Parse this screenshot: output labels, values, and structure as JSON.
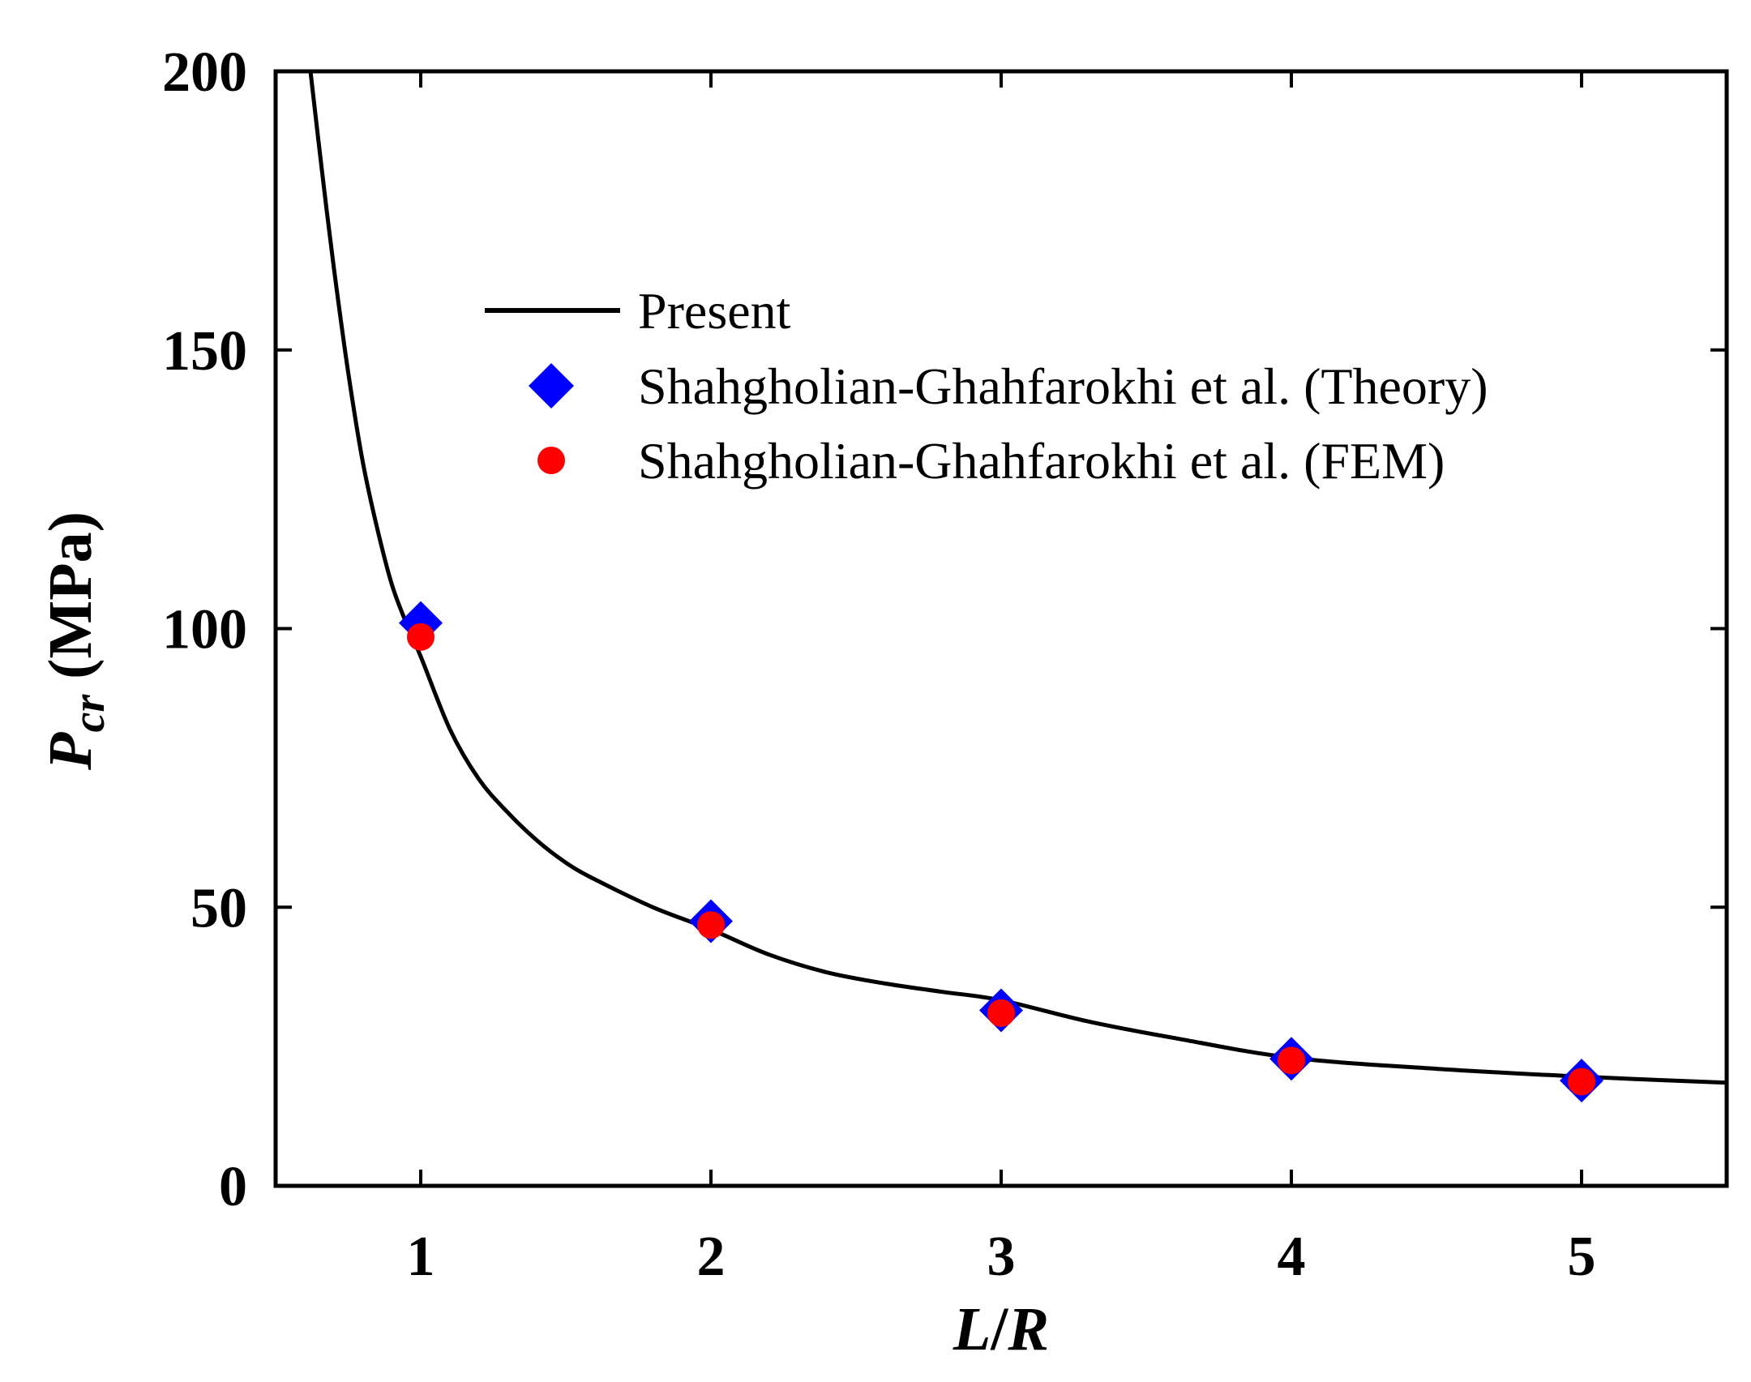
{
  "chart_data": {
    "type": "line",
    "title": "",
    "xlabel": "L/R",
    "xlabel_parts": {
      "first": "L",
      "slash": "/",
      "second": "R"
    },
    "ylabel": "Pcr (MPa)",
    "ylabel_parts": {
      "symbol": "P",
      "subscript": "cr",
      "unit": " (MPa)"
    },
    "xlim": [
      0.5,
      5.5
    ],
    "ylim": [
      0,
      200
    ],
    "xticks": [
      1,
      2,
      3,
      4,
      5
    ],
    "yticks": [
      0,
      50,
      100,
      150,
      200
    ],
    "grid": false,
    "legend_position": "upper-center",
    "series": [
      {
        "name": "Present",
        "kind": "line",
        "color": "#000000",
        "x": [
          0.62,
          0.66,
          0.7,
          0.75,
          0.8,
          0.85,
          0.9,
          0.95,
          1.0,
          1.1,
          1.2,
          1.3,
          1.4,
          1.5,
          1.6,
          1.8,
          2.0,
          2.2,
          2.4,
          2.6,
          2.8,
          3.0,
          3.3,
          3.6,
          4.0,
          4.5,
          5.0,
          5.5
        ],
        "y": [
          200,
          182,
          165,
          146,
          130,
          118,
          108,
          101,
          95,
          82,
          73,
          67,
          62,
          58,
          55,
          50,
          46,
          41.5,
          38.3,
          36.3,
          34.8,
          33.3,
          29.5,
          26.5,
          23,
          21,
          19.6,
          18.5
        ]
      },
      {
        "name": "Shahgholian-Ghahfarokhi et al. (Theory)",
        "kind": "scatter",
        "marker": "diamond",
        "color": "#0000ff",
        "x": [
          1,
          2,
          3,
          4,
          5
        ],
        "y": [
          101,
          47.5,
          31.5,
          22.8,
          18.9
        ]
      },
      {
        "name": "Shahgholian-Ghahfarokhi et al. (FEM)",
        "kind": "scatter",
        "marker": "circle",
        "color": "#ff0000",
        "x": [
          1,
          2,
          3,
          4,
          5
        ],
        "y": [
          98.5,
          46.8,
          31,
          22.5,
          18.7
        ]
      }
    ]
  }
}
